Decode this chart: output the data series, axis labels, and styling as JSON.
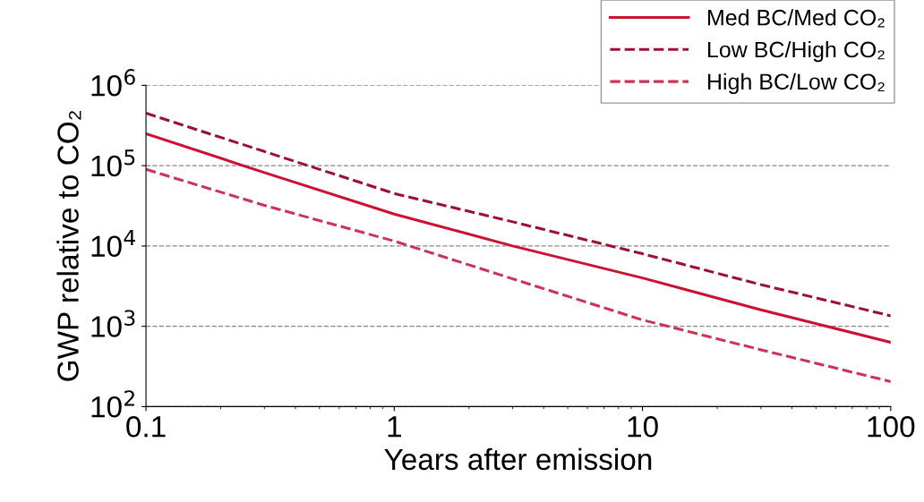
{
  "chart_data": {
    "type": "line",
    "xlabel": "Years after emission",
    "ylabel": "GWP relative to CO₂",
    "log": "xy",
    "x": [
      0.1,
      0.3,
      1,
      3,
      10,
      30,
      100
    ],
    "series": [
      {
        "name": "Med BC/Med CO₂",
        "color": "#cc1133",
        "line_style": "solid",
        "values": [
          250000,
          82000,
          25000,
          10000,
          4000,
          1600,
          630
        ]
      },
      {
        "name": "Low BC/High CO₂",
        "color": "#9e1030",
        "line_style": "dashed",
        "values": [
          450000,
          150000,
          45000,
          20000,
          8000,
          3300,
          1350
        ]
      },
      {
        "name": "High BC/Low CO₂",
        "color": "#cc3355",
        "line_style": "dashed",
        "values": [
          90000,
          32000,
          11500,
          3900,
          1200,
          510,
          205
        ]
      }
    ],
    "xlim": [
      0.1,
      100
    ],
    "xticks": [
      0.1,
      1,
      10,
      100
    ],
    "ylim": [
      100,
      1000000
    ],
    "yticks": [
      {
        "value": 100,
        "label": "10$^{2}$"
      },
      {
        "value": 1000,
        "label": "10$^{3}$"
      },
      {
        "value": 10000,
        "label": "10$^{4}$"
      },
      {
        "value": 100000,
        "label": "10$^{5}$"
      },
      {
        "value": 1000000,
        "label": "10$^{6}$"
      }
    ],
    "grid": "y",
    "legend": "top right",
    "marker": "none"
  }
}
